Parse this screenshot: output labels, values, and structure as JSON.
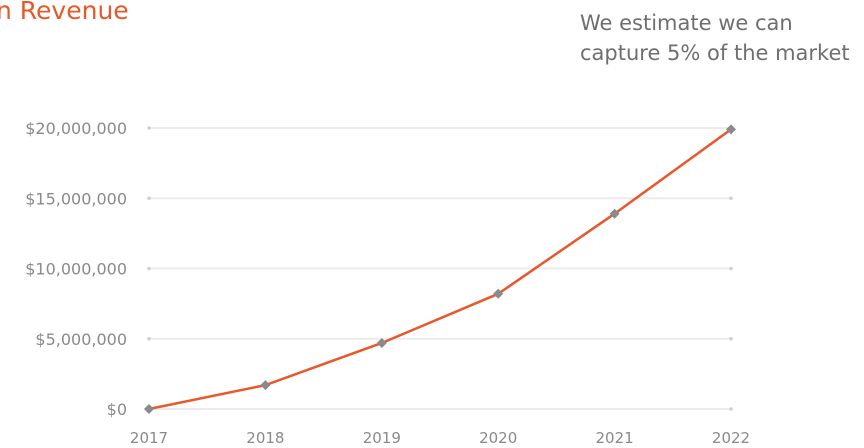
{
  "title": "n Revenue",
  "note": "We estimate we can capture 5% of the market",
  "colors": {
    "title": "#e8582a",
    "line": "#e8582a",
    "marker": "#8a8a8a",
    "grid": "#ececec",
    "text": "#8a8a8a"
  },
  "chart_data": {
    "type": "line",
    "title": "n Revenue",
    "x": [
      "2017",
      "2018",
      "2019",
      "2020",
      "2021",
      "2022"
    ],
    "y_tick_values": [
      0,
      5000000,
      10000000,
      15000000,
      20000000
    ],
    "y_tick_labels": [
      "$0",
      "$5,000,000",
      "$10,000,000",
      "$15,000,000",
      "$20,000,000"
    ],
    "series": [
      {
        "values": [
          0,
          1700000,
          4700000,
          8200000,
          13900000,
          19900000
        ]
      }
    ],
    "ylim": [
      0,
      20000000
    ],
    "grid": true,
    "marker": "diamond"
  }
}
